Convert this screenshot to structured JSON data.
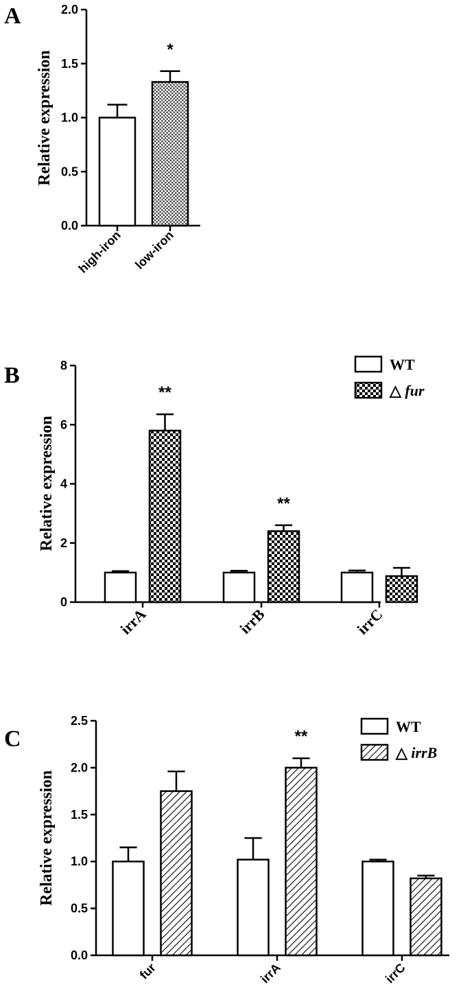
{
  "colors": {
    "ink": "#000000",
    "open_fill": "#ffffff"
  },
  "chart_data": [
    {
      "panel": "A",
      "type": "bar",
      "ylabel": "Relative expression",
      "xlabel": "",
      "ylim": [
        0,
        2.0
      ],
      "yticks": [
        "0.0",
        "0.5",
        "1.0",
        "1.5",
        "2.0"
      ],
      "categories": [
        "high-iron",
        "low-iron"
      ],
      "fills": [
        "open",
        "checker"
      ],
      "values": [
        1.0,
        1.33
      ],
      "errors": [
        0.12,
        0.1
      ],
      "annotations": [
        "",
        "*"
      ]
    },
    {
      "panel": "B",
      "type": "bar",
      "ylabel": "Relative expression",
      "xlabel": "",
      "ylim": [
        0,
        8
      ],
      "yticks": [
        "0",
        "2",
        "4",
        "6",
        "8"
      ],
      "categories": [
        "irrA",
        "irrB",
        "irrC"
      ],
      "legend_position": "top-right",
      "legend_prefix": "△",
      "series": [
        {
          "name": "WT",
          "fill": "open",
          "values": [
            1.0,
            1.0,
            1.0
          ],
          "errors": [
            0.05,
            0.06,
            0.07
          ]
        },
        {
          "name": "fur",
          "italic": true,
          "fill": "checker",
          "values": [
            5.8,
            2.4,
            0.88
          ],
          "errors": [
            0.55,
            0.2,
            0.28
          ]
        }
      ],
      "annotations": [
        "**",
        "**",
        ""
      ]
    },
    {
      "panel": "C",
      "type": "bar",
      "ylabel": "Relative expression",
      "xlabel": "",
      "ylim": [
        0,
        2.5
      ],
      "yticks": [
        "0.0",
        "0.5",
        "1.0",
        "1.5",
        "2.0",
        "2.5"
      ],
      "categories": [
        "fur",
        "irrA",
        "irrC"
      ],
      "legend_position": "top-right",
      "legend_prefix": "△",
      "series": [
        {
          "name": "WT",
          "fill": "open",
          "values": [
            1.0,
            1.02,
            1.0
          ],
          "errors": [
            0.15,
            0.23,
            0.02
          ]
        },
        {
          "name": "irrB",
          "italic": true,
          "fill": "hatch",
          "values": [
            1.75,
            2.0,
            0.82
          ],
          "errors": [
            0.21,
            0.1,
            0.03
          ]
        }
      ],
      "annotations": [
        "",
        "**",
        ""
      ]
    }
  ]
}
